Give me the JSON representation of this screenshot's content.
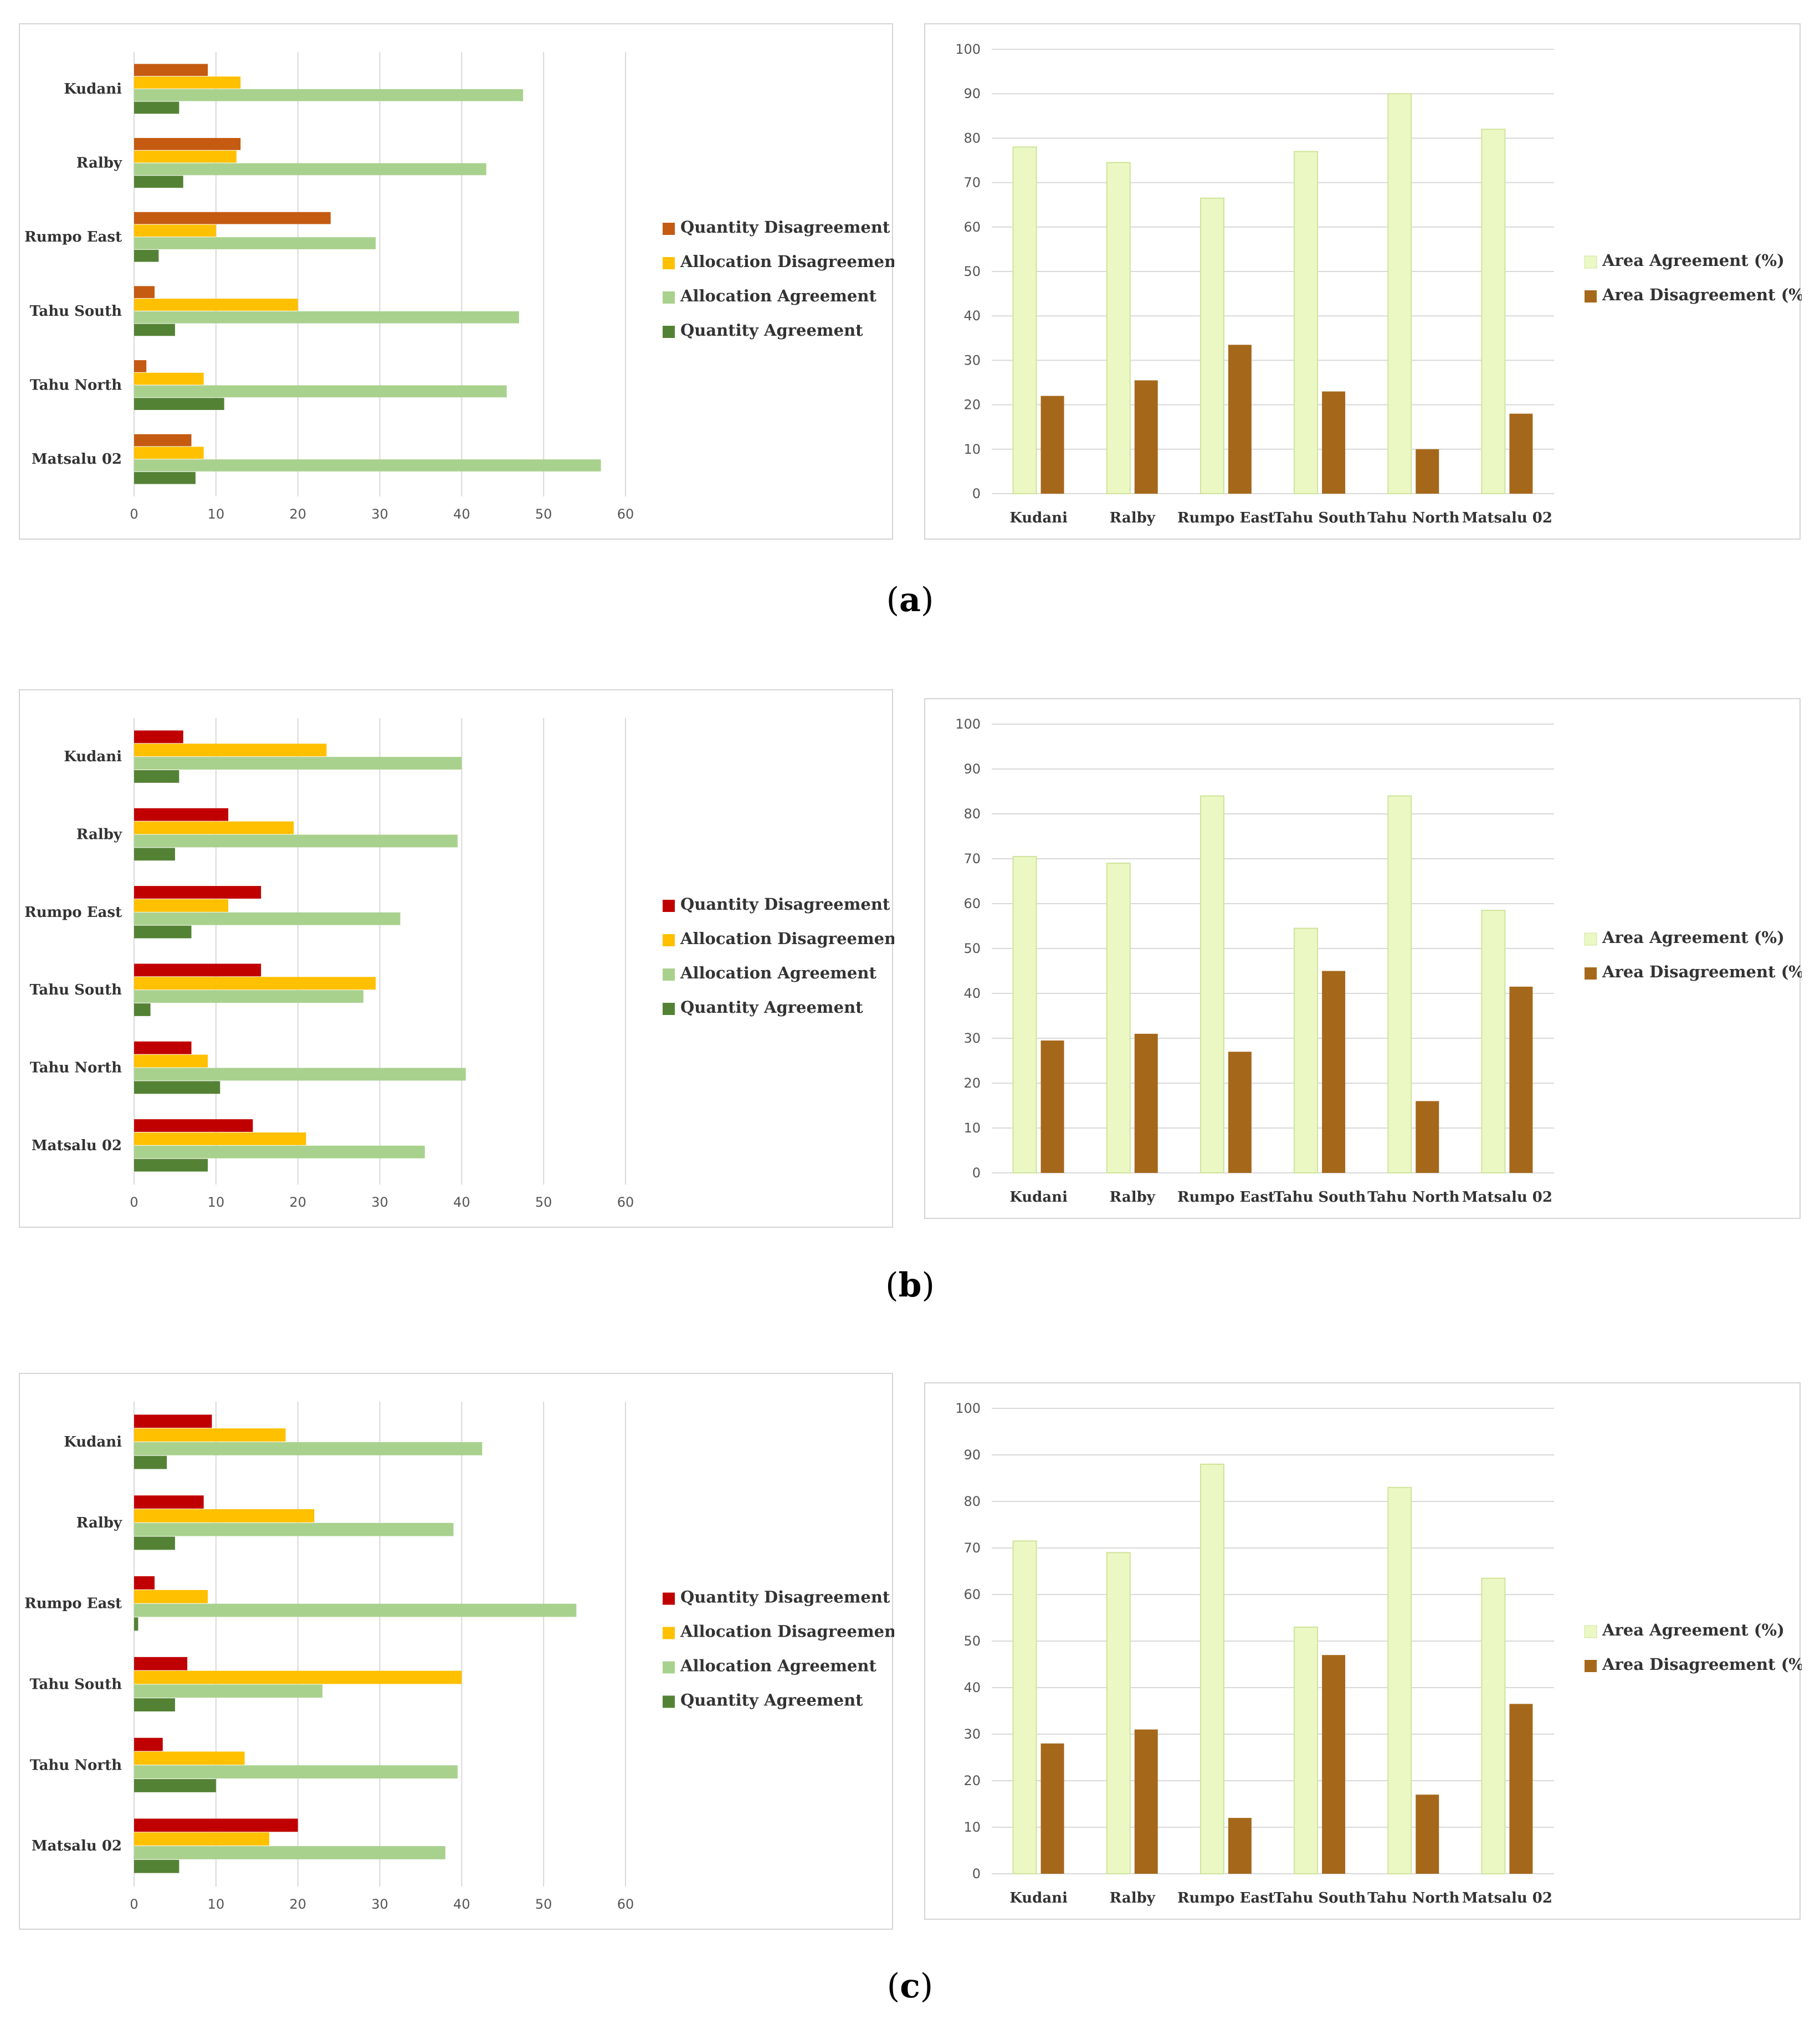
{
  "figures": [
    {
      "caption_label": "a",
      "hbar": {
        "legend": [
          "Quantity Disagreement",
          "Allocation Disagreement",
          "Allocation Agreement",
          "Quantity Agreement"
        ],
        "colors": [
          "#c55a11",
          "#ffc000",
          "#a9d18e",
          "#548235"
        ],
        "ticks": [
          "0",
          "10",
          "20",
          "30",
          "40",
          "50",
          "60"
        ]
      },
      "vbar": {
        "legend": [
          "Area Agreement (%)",
          "Area Disagreement (%)"
        ],
        "colors": [
          "#ebf8c4",
          "#a5681a"
        ],
        "ticks": [
          "0",
          "10",
          "20",
          "30",
          "40",
          "50",
          "60",
          "70",
          "80",
          "90",
          "100"
        ]
      }
    },
    {
      "caption_label": "b",
      "hbar": {
        "legend": [
          "Quantity Disagreement",
          "Allocation Disagreement",
          "Allocation Agreement",
          "Quantity Agreement"
        ],
        "colors": [
          "#c00000",
          "#ffc000",
          "#a9d18e",
          "#548235"
        ],
        "ticks": [
          "0",
          "10",
          "20",
          "30",
          "40",
          "50",
          "60"
        ]
      },
      "vbar": {
        "legend": [
          "Area Agreement (%)",
          "Area Disagreement (%)"
        ],
        "colors": [
          "#ebf8c4",
          "#a5681a"
        ],
        "ticks": [
          "0",
          "10",
          "20",
          "30",
          "40",
          "50",
          "60",
          "70",
          "80",
          "90",
          "100"
        ]
      }
    },
    {
      "caption_label": "c",
      "hbar": {
        "legend": [
          "Quantity Disagreement",
          "Allocation Disagreement",
          "Allocation Agreement",
          "Quantity Agreement"
        ],
        "colors": [
          "#c00000",
          "#ffc000",
          "#a9d18e",
          "#548235"
        ],
        "ticks": [
          "0",
          "10",
          "20",
          "30",
          "40",
          "50",
          "60"
        ]
      },
      "vbar": {
        "legend": [
          "Area Agreement (%)",
          "Area Disagreement (%)"
        ],
        "colors": [
          "#ebf8c4",
          "#a5681a"
        ],
        "ticks": [
          "0",
          "10",
          "20",
          "30",
          "40",
          "50",
          "60",
          "70",
          "80",
          "90",
          "100"
        ]
      }
    }
  ],
  "chart_data": [
    {
      "type": "bar",
      "orientation": "horizontal",
      "title": "",
      "categories": [
        "Kudani",
        "Ralby",
        "Rumpo East",
        "Tahu South",
        "Tahu North",
        "Matsalu 02"
      ],
      "series": [
        {
          "name": "Quantity Disagreement",
          "values": [
            9,
            13,
            24,
            2.5,
            1.5,
            7
          ]
        },
        {
          "name": "Allocation Disagreement",
          "values": [
            13,
            12.5,
            10,
            20,
            8.5,
            8.5
          ]
        },
        {
          "name": "Allocation Agreement",
          "values": [
            47.5,
            43,
            29.5,
            47,
            45.5,
            57
          ]
        },
        {
          "name": "Quantity Agreement",
          "values": [
            5.5,
            6,
            3,
            5,
            11,
            7.5
          ]
        }
      ],
      "xlim": [
        0,
        60
      ],
      "xlabel": "",
      "ylabel": ""
    },
    {
      "type": "bar",
      "orientation": "vertical",
      "title": "",
      "categories": [
        "Kudani",
        "Ralby",
        "Rumpo East",
        "Tahu South",
        "Tahu North",
        "Matsalu 02"
      ],
      "series": [
        {
          "name": "Area Agreement (%)",
          "values": [
            78,
            74.5,
            66.5,
            77,
            90,
            82
          ]
        },
        {
          "name": "Area Disagreement (%)",
          "values": [
            22,
            25.5,
            33.5,
            23,
            10,
            18
          ]
        }
      ],
      "ylim": [
        0,
        100
      ],
      "xlabel": "",
      "ylabel": ""
    },
    {
      "type": "bar",
      "orientation": "horizontal",
      "title": "",
      "categories": [
        "Kudani",
        "Ralby",
        "Rumpo East",
        "Tahu South",
        "Tahu North",
        "Matsalu 02"
      ],
      "series": [
        {
          "name": "Quantity Disagreement",
          "values": [
            6,
            11.5,
            15.5,
            15.5,
            7,
            14.5
          ]
        },
        {
          "name": "Allocation Disagreement",
          "values": [
            23.5,
            19.5,
            11.5,
            29.5,
            9,
            21
          ]
        },
        {
          "name": "Allocation Agreement",
          "values": [
            40,
            39.5,
            32.5,
            28,
            40.5,
            35.5
          ]
        },
        {
          "name": "Quantity Agreement",
          "values": [
            5.5,
            5,
            7,
            2,
            10.5,
            9
          ]
        }
      ],
      "xlim": [
        0,
        60
      ],
      "xlabel": "",
      "ylabel": ""
    },
    {
      "type": "bar",
      "orientation": "vertical",
      "title": "",
      "categories": [
        "Kudani",
        "Ralby",
        "Rumpo East",
        "Tahu South",
        "Tahu North",
        "Matsalu 02"
      ],
      "series": [
        {
          "name": "Area Agreement (%)",
          "values": [
            70.5,
            69,
            84,
            54.5,
            84,
            58.5
          ]
        },
        {
          "name": "Area Disagreement (%)",
          "values": [
            29.5,
            31,
            27,
            45,
            16,
            41.5
          ]
        }
      ],
      "ylim": [
        0,
        100
      ],
      "xlabel": "",
      "ylabel": ""
    },
    {
      "type": "bar",
      "orientation": "horizontal",
      "title": "",
      "categories": [
        "Kudani",
        "Ralby",
        "Rumpo East",
        "Tahu South",
        "Tahu North",
        "Matsalu 02"
      ],
      "series": [
        {
          "name": "Quantity Disagreement",
          "values": [
            9.5,
            8.5,
            2.5,
            6.5,
            3.5,
            20
          ]
        },
        {
          "name": "Allocation Disagreement",
          "values": [
            18.5,
            22,
            9,
            40,
            13.5,
            16.5
          ]
        },
        {
          "name": "Allocation Agreement",
          "values": [
            42.5,
            39,
            54,
            23,
            39.5,
            38
          ]
        },
        {
          "name": "Quantity Agreement",
          "values": [
            4,
            5,
            0.5,
            5,
            10,
            5.5
          ]
        }
      ],
      "xlim": [
        0,
        60
      ],
      "xlabel": "",
      "ylabel": ""
    },
    {
      "type": "bar",
      "orientation": "vertical",
      "title": "",
      "categories": [
        "Kudani",
        "Ralby",
        "Rumpo East",
        "Tahu South",
        "Tahu North",
        "Matsalu 02"
      ],
      "series": [
        {
          "name": "Area Agreement (%)",
          "values": [
            71.5,
            69,
            88,
            53,
            83,
            63.5
          ]
        },
        {
          "name": "Area Disagreement (%)",
          "values": [
            28,
            31,
            12,
            47,
            17,
            36.5
          ]
        }
      ],
      "ylim": [
        0,
        100
      ],
      "xlabel": "",
      "ylabel": ""
    }
  ]
}
